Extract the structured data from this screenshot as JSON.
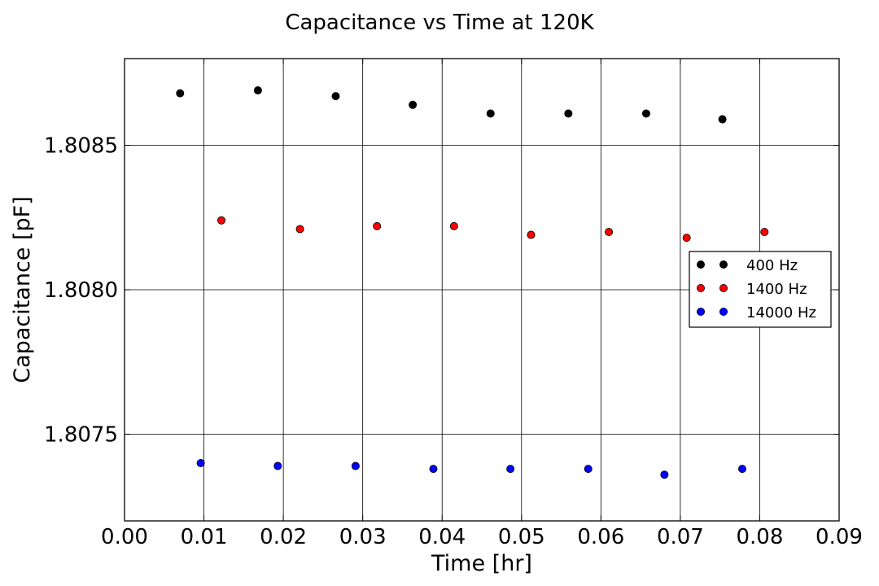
{
  "chart_data": {
    "type": "scatter",
    "title": "Capacitance vs Time at 120K",
    "xlabel": "Time [hr]",
    "ylabel": "Capacitance [pF]",
    "xlim": [
      0.0,
      0.09
    ],
    "ylim": [
      1.8072,
      1.8088
    ],
    "xticks": [
      0.0,
      0.01,
      0.02,
      0.03,
      0.04,
      0.05,
      0.06,
      0.07,
      0.08,
      0.09
    ],
    "xtick_labels": [
      "0.00",
      "0.01",
      "0.02",
      "0.03",
      "0.04",
      "0.05",
      "0.06",
      "0.07",
      "0.08",
      "0.09"
    ],
    "yticks": [
      1.8075,
      1.808,
      1.8085
    ],
    "ytick_labels": [
      "1.8075",
      "1.8080",
      "1.8085"
    ],
    "grid": true,
    "legend_position": "center-right",
    "series": [
      {
        "name": "400 Hz",
        "color": "#000000",
        "x": [
          0.007,
          0.0168,
          0.0266,
          0.0363,
          0.0461,
          0.0559,
          0.0657,
          0.0753
        ],
        "y": [
          1.80868,
          1.80869,
          1.80867,
          1.80864,
          1.80861,
          1.80861,
          1.80861,
          1.80859
        ]
      },
      {
        "name": "1400 Hz",
        "color": "#ff0000",
        "x": [
          0.0122,
          0.0221,
          0.0318,
          0.0415,
          0.0512,
          0.061,
          0.0708,
          0.0806
        ],
        "y": [
          1.80824,
          1.80821,
          1.80822,
          1.80822,
          1.80819,
          1.8082,
          1.80818,
          1.8082
        ]
      },
      {
        "name": "14000 Hz",
        "color": "#0000ff",
        "x": [
          0.0096,
          0.0193,
          0.0291,
          0.0389,
          0.0486,
          0.0584,
          0.068,
          0.0778
        ],
        "y": [
          1.8074,
          1.80739,
          1.80739,
          1.80738,
          1.80738,
          1.80738,
          1.80736,
          1.80738
        ]
      }
    ]
  }
}
